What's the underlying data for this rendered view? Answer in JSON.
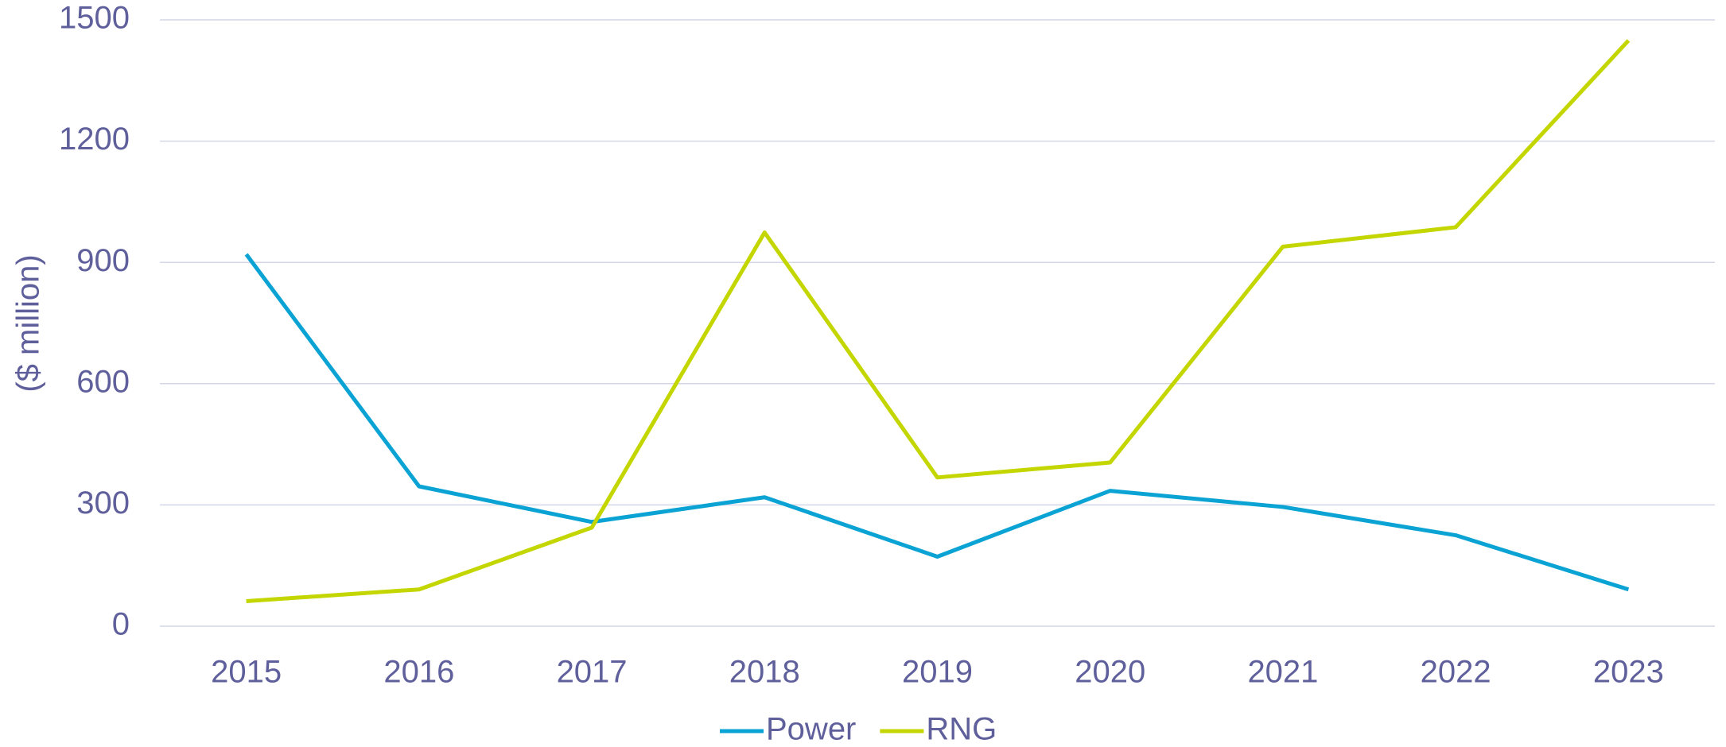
{
  "chart_data": {
    "type": "line",
    "y_label": "($ million)",
    "categories": [
      "2015",
      "2016",
      "2017",
      "2018",
      "2019",
      "2020",
      "2021",
      "2022",
      "2023"
    ],
    "series": [
      {
        "name": "Power",
        "color": "#0aa3d4",
        "values": [
          920,
          346,
          258,
          319,
          172,
          335,
          295,
          225,
          91
        ]
      },
      {
        "name": "RNG",
        "color": "#c4d600",
        "values": [
          62,
          91,
          244,
          974,
          368,
          405,
          939,
          987,
          1449
        ]
      }
    ],
    "ylim": [
      0,
      1500
    ],
    "yticks": [
      0,
      300,
      600,
      900,
      1200,
      1500
    ],
    "grid": true,
    "legend": "bottom"
  }
}
